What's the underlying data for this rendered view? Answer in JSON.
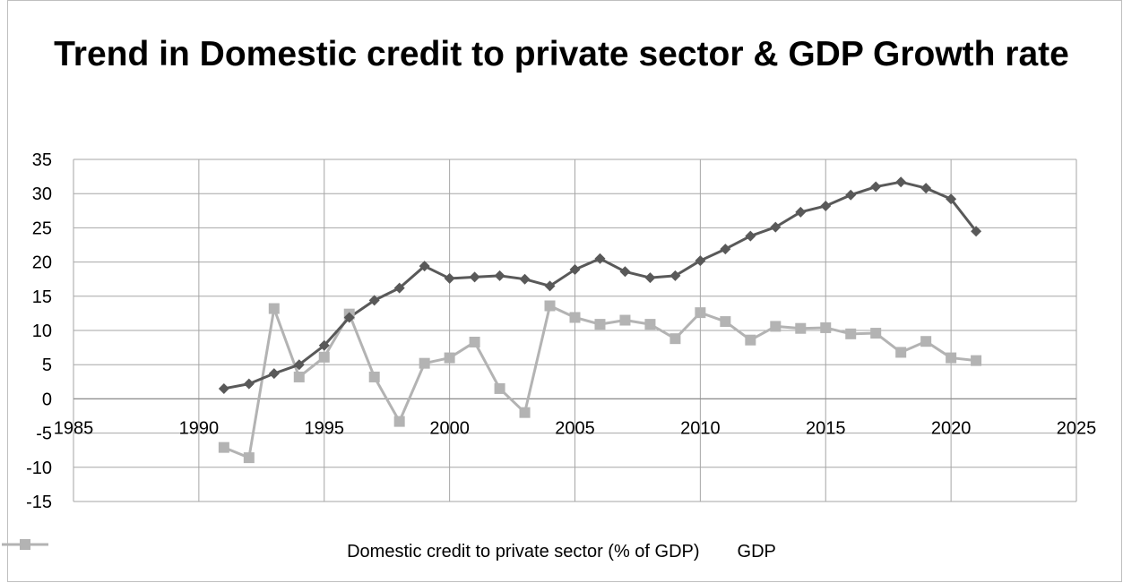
{
  "chart_data": {
    "type": "scatter",
    "title": "Trend in Domestic credit to private sector & GDP Growth rate",
    "xlim": [
      1985,
      2025
    ],
    "ylim": [
      -15,
      35
    ],
    "xticks": [
      1985,
      1990,
      1995,
      2000,
      2005,
      2010,
      2015,
      2020,
      2025
    ],
    "yticks": [
      -15,
      -10,
      -5,
      0,
      5,
      10,
      15,
      20,
      25,
      30,
      35
    ],
    "grid": true,
    "legend_position": "bottom",
    "series": [
      {
        "name": "Domestic credit to private sector (% of GDP)",
        "color": "#595959",
        "marker": "diamond",
        "x": [
          1991,
          1992,
          1993,
          1994,
          1995,
          1996,
          1997,
          1998,
          1999,
          2000,
          2001,
          2002,
          2003,
          2004,
          2005,
          2006,
          2007,
          2008,
          2009,
          2010,
          2011,
          2012,
          2013,
          2014,
          2015,
          2016,
          2017,
          2018,
          2019,
          2020,
          2021
        ],
        "y": [
          1.5,
          2.2,
          3.7,
          5.0,
          7.8,
          11.9,
          14.4,
          16.2,
          19.4,
          17.6,
          17.8,
          18.0,
          17.5,
          16.5,
          18.9,
          20.5,
          18.6,
          17.7,
          18.0,
          20.2,
          21.9,
          23.8,
          25.1,
          27.3,
          28.2,
          29.8,
          31.0,
          31.7,
          30.8,
          29.2,
          24.5
        ]
      },
      {
        "name": "GDP",
        "color": "#b3b3b3",
        "marker": "square",
        "x": [
          1991,
          1992,
          1993,
          1994,
          1995,
          1996,
          1997,
          1998,
          1999,
          2000,
          2001,
          2002,
          2003,
          2004,
          2005,
          2006,
          2007,
          2008,
          2009,
          2010,
          2011,
          2012,
          2013,
          2014,
          2015,
          2016,
          2017,
          2018,
          2019,
          2020,
          2021
        ],
        "y": [
          -7.1,
          -8.6,
          13.2,
          3.2,
          6.1,
          12.4,
          3.2,
          -3.3,
          5.2,
          6.0,
          8.3,
          1.5,
          -2.0,
          13.6,
          11.9,
          10.9,
          11.5,
          10.9,
          8.8,
          12.6,
          11.3,
          8.6,
          10.6,
          10.3,
          10.4,
          9.5,
          9.6,
          6.8,
          8.4,
          6.0,
          5.6
        ]
      }
    ]
  }
}
